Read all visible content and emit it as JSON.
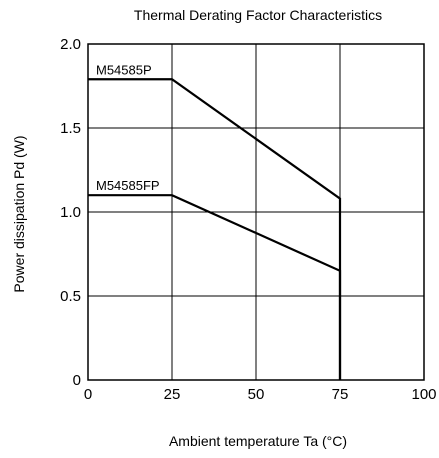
{
  "chart_data": {
    "type": "line",
    "title": "Thermal Derating Factor Characteristics",
    "xlabel": "Ambient temperature  Ta (°C)",
    "ylabel": "Power dissipation  Pd (W)",
    "xlim": [
      0,
      100
    ],
    "ylim": [
      0,
      2.0
    ],
    "x_ticks": [
      0,
      25,
      50,
      75,
      100
    ],
    "x_tick_labels": [
      "0",
      "25",
      "50",
      "75",
      "100"
    ],
    "y_ticks": [
      0,
      0.5,
      1.0,
      1.5,
      2.0
    ],
    "y_tick_labels": [
      "0",
      "0.5",
      "1.0",
      "1.5",
      "2.0"
    ],
    "grid": true,
    "series": [
      {
        "name": "M54585P",
        "x": [
          0,
          25,
          75,
          75
        ],
        "y": [
          1.79,
          1.79,
          1.08,
          0
        ]
      },
      {
        "name": "M54585FP",
        "x": [
          0,
          25,
          75,
          75
        ],
        "y": [
          1.1,
          1.1,
          0.65,
          0
        ]
      }
    ]
  }
}
